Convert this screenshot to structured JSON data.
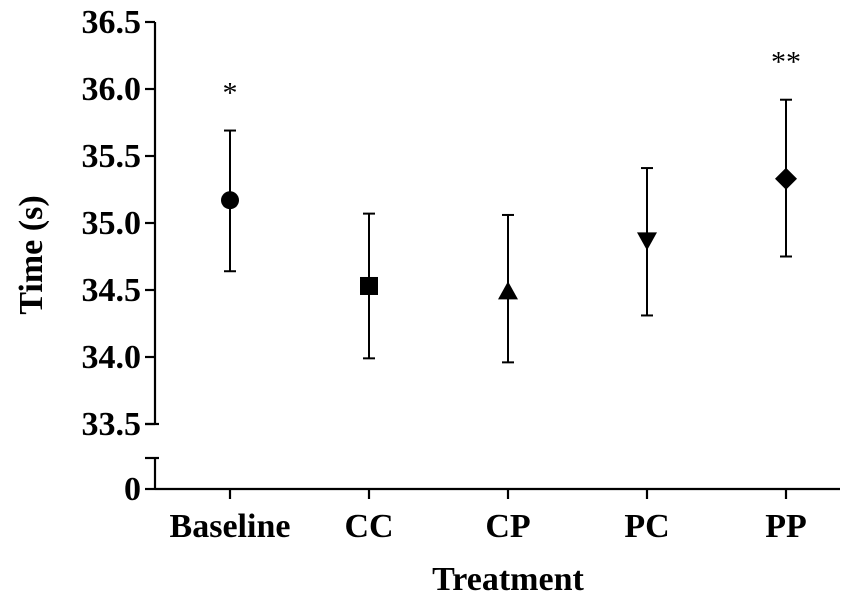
{
  "chart_data": {
    "type": "scatter",
    "title": "",
    "xlabel": "Treatment",
    "ylabel": "Time (s)",
    "categories": [
      "Baseline",
      "CC",
      "CP",
      "PC",
      "PP"
    ],
    "series": [
      {
        "values": [
          35.17,
          34.53,
          34.49,
          34.87,
          35.33
        ],
        "error_low": [
          34.64,
          33.99,
          33.96,
          34.31,
          34.75
        ],
        "error_high": [
          35.69,
          35.07,
          35.06,
          35.41,
          35.92
        ],
        "markers": [
          "circle",
          "square",
          "triangle-up",
          "triangle-down",
          "diamond"
        ],
        "annotations": [
          "*",
          "",
          "",
          "",
          "**"
        ]
      }
    ],
    "y_axis": {
      "broken": true,
      "lower_segment_ticks": [
        0
      ],
      "lower_segment_labels": [
        "0"
      ],
      "upper_segment_range": [
        33.5,
        36.5
      ],
      "upper_segment_ticks": [
        33.5,
        34.0,
        34.5,
        35.0,
        35.5,
        36.0,
        36.5
      ],
      "upper_segment_labels": [
        "33.5",
        "34.0",
        "34.5",
        "35.0",
        "35.5",
        "36.0",
        "36.5"
      ]
    },
    "grid": false,
    "legend": "none"
  }
}
